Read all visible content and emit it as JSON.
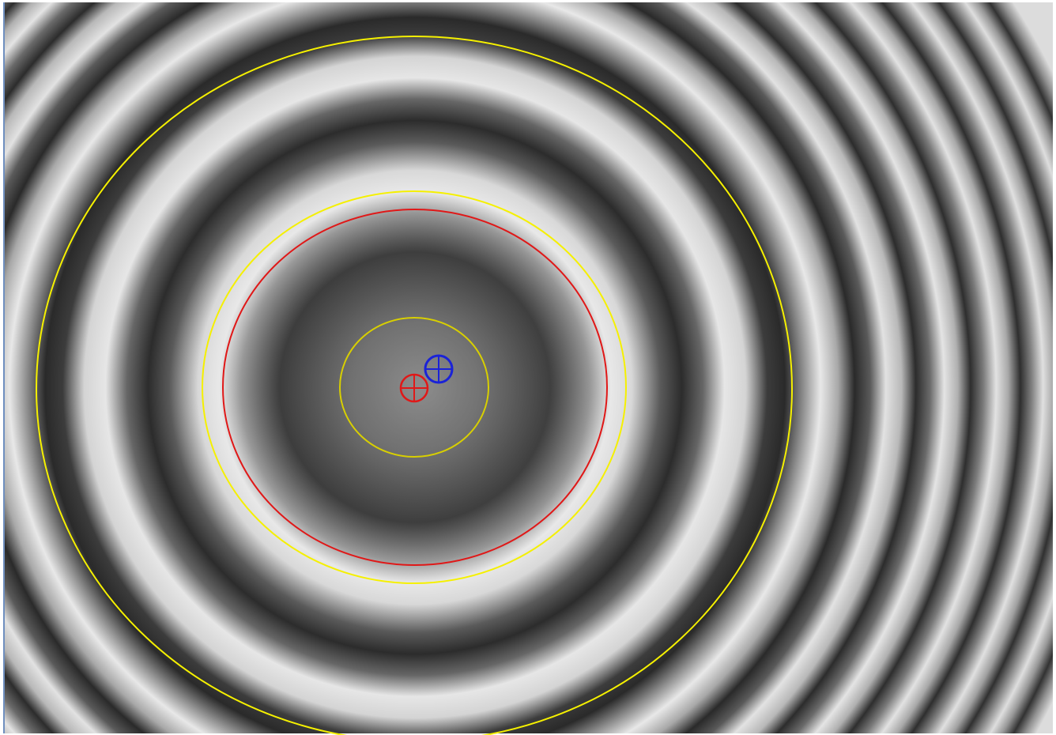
{
  "viewer": {
    "image_name": "interference-fringe-image",
    "colors": {
      "fringe_dark": "#2a2a2a",
      "fringe_light": "#e6e6e6",
      "center_dark": "#505050",
      "overlay_yellow": "#f5f000",
      "overlay_red": "#e01818",
      "overlay_blue": "#1a22d8"
    },
    "overlays": {
      "outer_ring_label": "yellow-outer-circle",
      "middle_ring_label": "yellow-middle-circle",
      "inner_ring_label": "yellow-inner-circle",
      "fit_circle_label": "red-fit-circle",
      "red_marker_label": "red-crosshair-marker",
      "blue_marker_label": "blue-crosshair-marker"
    }
  }
}
